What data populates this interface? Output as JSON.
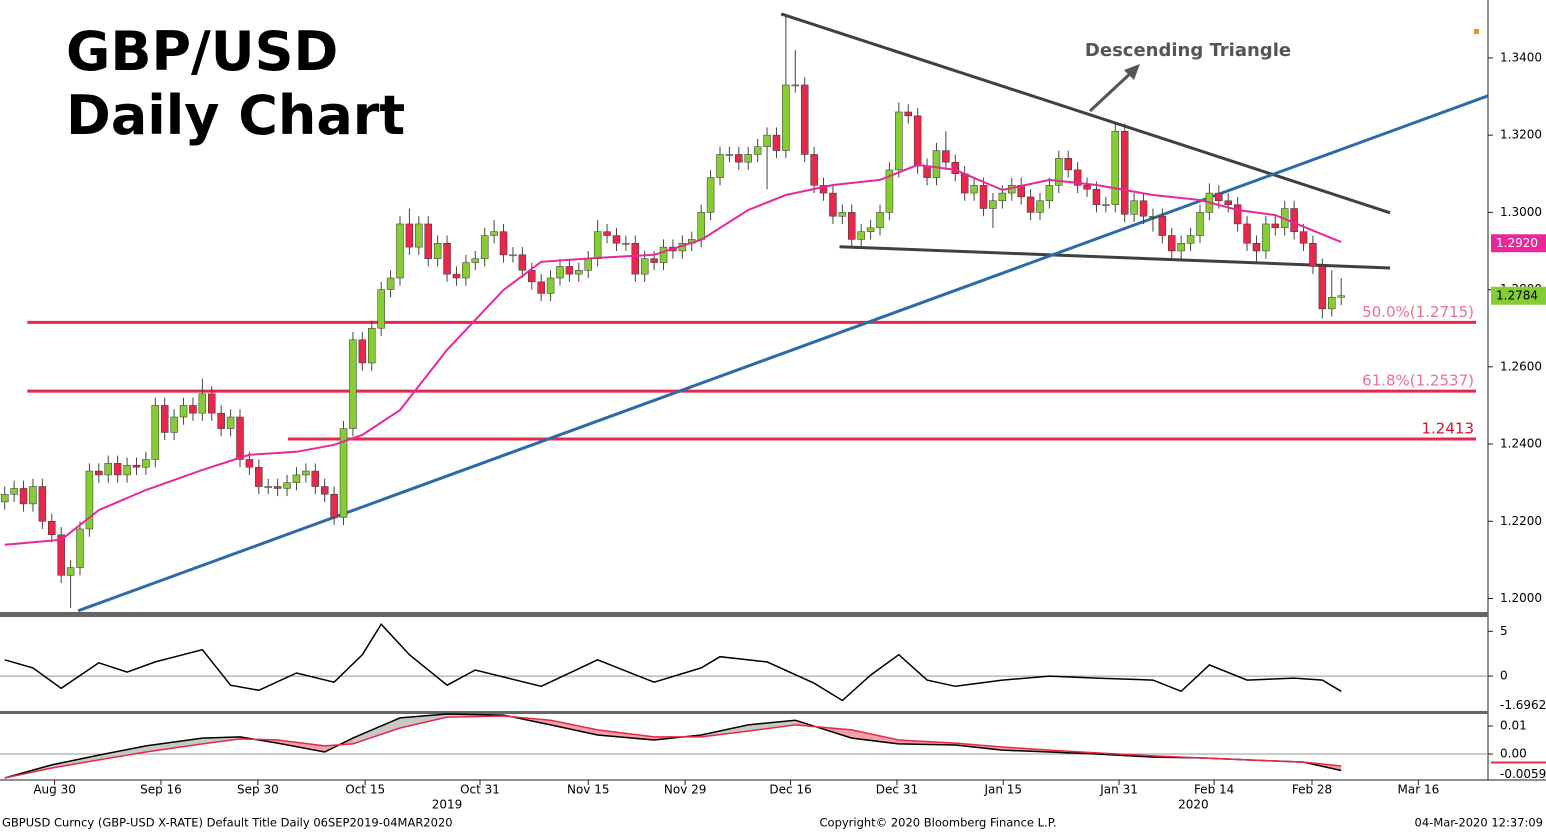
{
  "chart_data": {
    "type": "candlestick",
    "title": "GBP/USD",
    "subtitle": "Daily Chart",
    "annotation": "Descending Triangle",
    "xlim": [
      -0.5,
      157.6
    ],
    "ylim": [
      1.1965,
      1.355
    ],
    "yticks": [
      {
        "value": 1.2,
        "label": "1.2000"
      },
      {
        "value": 1.22,
        "label": "1.2200"
      },
      {
        "value": 1.24,
        "label": "1.2400"
      },
      {
        "value": 1.26,
        "label": "1.2600"
      },
      {
        "value": 1.28,
        "label": "1.2800"
      },
      {
        "value": 1.3,
        "label": "1.3000"
      },
      {
        "value": 1.32,
        "label": "1.3200"
      },
      {
        "value": 1.34,
        "label": "1.3400"
      }
    ],
    "xticks": [
      {
        "value": 5.3,
        "label": "Aug 30"
      },
      {
        "value": 16.6,
        "label": "Sep 16"
      },
      {
        "value": 26.9,
        "label": "Sep 30"
      },
      {
        "value": 38.3,
        "label": "Oct 15"
      },
      {
        "value": 50.5,
        "label": "Oct 31"
      },
      {
        "value": 62,
        "label": "Nov 15"
      },
      {
        "value": 72.3,
        "label": "Nov 29"
      },
      {
        "value": 83.5,
        "label": "Dec 16"
      },
      {
        "value": 94.8,
        "label": "Dec 31"
      },
      {
        "value": 106.1,
        "label": "Jan 15"
      },
      {
        "value": 118.4,
        "label": "Jan 31"
      },
      {
        "value": 128.5,
        "label": "Feb 14"
      },
      {
        "value": 138.9,
        "label": "Feb 28"
      },
      {
        "value": 150.2,
        "label": "Mar 16"
      }
    ],
    "year_labels": [
      {
        "value": 47,
        "label": "2019"
      },
      {
        "value": 126.3,
        "label": "2020"
      }
    ],
    "up_color": "#86cc34",
    "down_color": "#e8284a",
    "candles": [
      [
        1.225,
        1.229,
        1.223,
        1.227
      ],
      [
        1.227,
        1.2305,
        1.225,
        1.2285
      ],
      [
        1.2285,
        1.2305,
        1.2225,
        1.2245
      ],
      [
        1.2245,
        1.231,
        1.2225,
        1.229
      ],
      [
        1.229,
        1.231,
        1.218,
        1.22
      ],
      [
        1.22,
        1.222,
        1.2145,
        1.2165
      ],
      [
        1.2165,
        1.2185,
        1.204,
        1.206
      ],
      [
        1.206,
        1.21,
        1.1975,
        1.208
      ],
      [
        1.208,
        1.22,
        1.206,
        1.218
      ],
      [
        1.218,
        1.235,
        1.216,
        1.233
      ],
      [
        1.233,
        1.235,
        1.23,
        1.232
      ],
      [
        1.232,
        1.237,
        1.23,
        1.235
      ],
      [
        1.235,
        1.237,
        1.23,
        1.232
      ],
      [
        1.232,
        1.2365,
        1.23,
        1.2345
      ],
      [
        1.2345,
        1.2365,
        1.232,
        1.234
      ],
      [
        1.234,
        1.238,
        1.232,
        1.236
      ],
      [
        1.236,
        1.252,
        1.234,
        1.25
      ],
      [
        1.25,
        1.252,
        1.241,
        1.243
      ],
      [
        1.243,
        1.249,
        1.241,
        1.247
      ],
      [
        1.247,
        1.252,
        1.245,
        1.25
      ],
      [
        1.25,
        1.252,
        1.246,
        1.248
      ],
      [
        1.248,
        1.257,
        1.246,
        1.253
      ],
      [
        1.253,
        1.255,
        1.246,
        1.248
      ],
      [
        1.248,
        1.25,
        1.242,
        1.244
      ],
      [
        1.244,
        1.249,
        1.242,
        1.247
      ],
      [
        1.247,
        1.249,
        1.234,
        1.236
      ],
      [
        1.236,
        1.238,
        1.232,
        1.234
      ],
      [
        1.234,
        1.236,
        1.227,
        1.229
      ],
      [
        1.229,
        1.231,
        1.227,
        1.229
      ],
      [
        1.229,
        1.231,
        1.2265,
        1.2285
      ],
      [
        1.2285,
        1.232,
        1.2265,
        1.23
      ],
      [
        1.23,
        1.234,
        1.228,
        1.232
      ],
      [
        1.232,
        1.235,
        1.23,
        1.233
      ],
      [
        1.233,
        1.235,
        1.227,
        1.229
      ],
      [
        1.229,
        1.231,
        1.225,
        1.227
      ],
      [
        1.227,
        1.229,
        1.219,
        1.221
      ],
      [
        1.221,
        1.246,
        1.219,
        1.244
      ],
      [
        1.244,
        1.269,
        1.242,
        1.267
      ],
      [
        1.267,
        1.269,
        1.259,
        1.261
      ],
      [
        1.261,
        1.272,
        1.259,
        1.27
      ],
      [
        1.27,
        1.282,
        1.268,
        1.28
      ],
      [
        1.28,
        1.285,
        1.278,
        1.283
      ],
      [
        1.283,
        1.299,
        1.281,
        1.297
      ],
      [
        1.297,
        1.301,
        1.289,
        1.291
      ],
      [
        1.291,
        1.299,
        1.289,
        1.297
      ],
      [
        1.297,
        1.299,
        1.286,
        1.288
      ],
      [
        1.288,
        1.294,
        1.286,
        1.292
      ],
      [
        1.292,
        1.294,
        1.282,
        1.284
      ],
      [
        1.284,
        1.286,
        1.281,
        1.283
      ],
      [
        1.283,
        1.289,
        1.281,
        1.287
      ],
      [
        1.287,
        1.29,
        1.285,
        1.288
      ],
      [
        1.288,
        1.296,
        1.286,
        1.294
      ],
      [
        1.294,
        1.298,
        1.292,
        1.295
      ],
      [
        1.295,
        1.297,
        1.287,
        1.289
      ],
      [
        1.289,
        1.291,
        1.287,
        1.289
      ],
      [
        1.289,
        1.291,
        1.283,
        1.285
      ],
      [
        1.285,
        1.287,
        1.28,
        1.282
      ],
      [
        1.282,
        1.284,
        1.277,
        1.279
      ],
      [
        1.279,
        1.285,
        1.277,
        1.283
      ],
      [
        1.283,
        1.288,
        1.281,
        1.286
      ],
      [
        1.286,
        1.288,
        1.282,
        1.284
      ],
      [
        1.284,
        1.287,
        1.282,
        1.285
      ],
      [
        1.285,
        1.29,
        1.283,
        1.288
      ],
      [
        1.288,
        1.298,
        1.286,
        1.295
      ],
      [
        1.295,
        1.297,
        1.292,
        1.294
      ],
      [
        1.294,
        1.296,
        1.29,
        1.292
      ],
      [
        1.292,
        1.294,
        1.29,
        1.292
      ],
      [
        1.292,
        1.294,
        1.282,
        1.284
      ],
      [
        1.284,
        1.29,
        1.282,
        1.288
      ],
      [
        1.288,
        1.29,
        1.285,
        1.287
      ],
      [
        1.287,
        1.293,
        1.285,
        1.291
      ],
      [
        1.291,
        1.293,
        1.288,
        1.29
      ],
      [
        1.29,
        1.294,
        1.288,
        1.292
      ],
      [
        1.292,
        1.295,
        1.29,
        1.293
      ],
      [
        1.293,
        1.302,
        1.291,
        1.3
      ],
      [
        1.3,
        1.311,
        1.298,
        1.309
      ],
      [
        1.309,
        1.317,
        1.307,
        1.315
      ],
      [
        1.315,
        1.317,
        1.313,
        1.315
      ],
      [
        1.315,
        1.317,
        1.311,
        1.313
      ],
      [
        1.313,
        1.317,
        1.311,
        1.315
      ],
      [
        1.315,
        1.319,
        1.313,
        1.317
      ],
      [
        1.317,
        1.322,
        1.306,
        1.32
      ],
      [
        1.32,
        1.322,
        1.314,
        1.316
      ],
      [
        1.316,
        1.351,
        1.314,
        1.333
      ],
      [
        1.333,
        1.342,
        1.331,
        1.333
      ],
      [
        1.333,
        1.335,
        1.313,
        1.315
      ],
      [
        1.315,
        1.317,
        1.305,
        1.307
      ],
      [
        1.307,
        1.309,
        1.303,
        1.305
      ],
      [
        1.305,
        1.307,
        1.297,
        1.299
      ],
      [
        1.299,
        1.302,
        1.297,
        1.3
      ],
      [
        1.3,
        1.302,
        1.291,
        1.293
      ],
      [
        1.293,
        1.297,
        1.291,
        1.295
      ],
      [
        1.295,
        1.298,
        1.293,
        1.296
      ],
      [
        1.296,
        1.302,
        1.294,
        1.3
      ],
      [
        1.3,
        1.313,
        1.298,
        1.311
      ],
      [
        1.311,
        1.3285,
        1.309,
        1.326
      ],
      [
        1.326,
        1.328,
        1.323,
        1.325
      ],
      [
        1.325,
        1.327,
        1.31,
        1.312
      ],
      [
        1.312,
        1.314,
        1.307,
        1.309
      ],
      [
        1.309,
        1.318,
        1.307,
        1.316
      ],
      [
        1.316,
        1.321,
        1.311,
        1.313
      ],
      [
        1.313,
        1.315,
        1.308,
        1.31
      ],
      [
        1.31,
        1.312,
        1.303,
        1.305
      ],
      [
        1.305,
        1.309,
        1.303,
        1.307
      ],
      [
        1.307,
        1.309,
        1.299,
        1.301
      ],
      [
        1.301,
        1.305,
        1.296,
        1.303
      ],
      [
        1.303,
        1.307,
        1.301,
        1.305
      ],
      [
        1.305,
        1.309,
        1.303,
        1.307
      ],
      [
        1.307,
        1.309,
        1.302,
        1.304
      ],
      [
        1.304,
        1.306,
        1.298,
        1.3
      ],
      [
        1.3,
        1.305,
        1.298,
        1.303
      ],
      [
        1.303,
        1.309,
        1.301,
        1.307
      ],
      [
        1.307,
        1.316,
        1.305,
        1.314
      ],
      [
        1.314,
        1.316,
        1.309,
        1.311
      ],
      [
        1.311,
        1.313,
        1.305,
        1.307
      ],
      [
        1.307,
        1.309,
        1.304,
        1.306
      ],
      [
        1.306,
        1.308,
        1.3,
        1.302
      ],
      [
        1.302,
        1.304,
        1.3,
        1.302
      ],
      [
        1.302,
        1.323,
        1.3,
        1.321
      ],
      [
        1.321,
        1.323,
        1.2975,
        1.2995
      ],
      [
        1.2995,
        1.305,
        1.2975,
        1.303
      ],
      [
        1.303,
        1.305,
        1.297,
        1.299
      ],
      [
        1.299,
        1.301,
        1.295,
        1.299
      ],
      [
        1.299,
        1.301,
        1.292,
        1.294
      ],
      [
        1.294,
        1.296,
        1.288,
        1.29
      ],
      [
        1.29,
        1.294,
        1.288,
        1.292
      ],
      [
        1.292,
        1.296,
        1.29,
        1.294
      ],
      [
        1.294,
        1.302,
        1.292,
        1.3
      ],
      [
        1.3,
        1.3075,
        1.298,
        1.305
      ],
      [
        1.305,
        1.307,
        1.301,
        1.303
      ],
      [
        1.303,
        1.305,
        1.3,
        1.302
      ],
      [
        1.302,
        1.304,
        1.295,
        1.297
      ],
      [
        1.297,
        1.299,
        1.29,
        1.292
      ],
      [
        1.292,
        1.294,
        1.287,
        1.29
      ],
      [
        1.29,
        1.299,
        1.288,
        1.297
      ],
      [
        1.297,
        1.299,
        1.294,
        1.296
      ],
      [
        1.296,
        1.303,
        1.294,
        1.301
      ],
      [
        1.301,
        1.303,
        1.293,
        1.295
      ],
      [
        1.295,
        1.297,
        1.29,
        1.292
      ],
      [
        1.292,
        1.294,
        1.284,
        1.286
      ],
      [
        1.286,
        1.288,
        1.2725,
        1.275
      ],
      [
        1.275,
        1.285,
        1.273,
        1.278
      ],
      [
        1.278,
        1.283,
        1.276,
        1.2784
      ]
    ],
    "ma": {
      "color": "#e8289a",
      "x": [
        0,
        6,
        10,
        15,
        21,
        26,
        31,
        35,
        38,
        42,
        47,
        53,
        57,
        63,
        69,
        74,
        79,
        83,
        88,
        93,
        97,
        101,
        106,
        111,
        116,
        122,
        127,
        131,
        135,
        142
      ],
      "values": [
        1.2139,
        1.2152,
        1.2229,
        1.2281,
        1.2333,
        1.2372,
        1.238,
        1.2398,
        1.2424,
        1.2488,
        1.2644,
        1.2799,
        1.2872,
        1.2882,
        1.289,
        1.2929,
        1.3006,
        1.3045,
        1.3071,
        1.3084,
        1.3123,
        1.311,
        1.3058,
        1.3084,
        1.3071,
        1.3045,
        1.3032,
        1.3006,
        1.2993,
        1.2923
      ]
    },
    "trend_lines": [
      {
        "color": "#404040",
        "x": [
          82.5,
          147.2
        ],
        "values": [
          1.3514,
          1.2999
        ]
      },
      {
        "color": "#404040",
        "x": [
          88.7,
          147.2
        ],
        "values": [
          1.2911,
          1.2856
        ]
      },
      {
        "color": "#2f6aa8",
        "x": [
          7.8,
          157.6
        ],
        "values": [
          1.1968,
          1.3302
        ]
      }
    ],
    "levels": [
      {
        "value": 1.2715,
        "label": "50.0%(1.2715)",
        "color": "#e8284a",
        "label_color": "#f07090",
        "from": 2.4
      },
      {
        "value": 1.2537,
        "label": "61.8%(1.2537)",
        "color": "#e8284a",
        "label_color": "#f07090",
        "from": 2.4
      },
      {
        "value": 1.2413,
        "label": "1.2413",
        "color": "#e8284a",
        "label_color": "#e0102a",
        "from": 30.1
      }
    ],
    "last_prices": [
      {
        "value": 1.292,
        "label": "1.2920",
        "color": "#e8289a",
        "text_color": "#ffffff"
      },
      {
        "value": 1.2784,
        "label": "1.2784",
        "color": "#86cc34",
        "text_color": "#000000"
      }
    ],
    "panels": [
      {
        "ylim": [
          -3.9,
          6.6
        ],
        "yticks": [
          5,
          0
        ],
        "last": {
          "value": -1.6962,
          "label": "-1.6962"
        },
        "series": [
          {
            "color": "#000000",
            "x": [
              0,
              3,
              6,
              10,
              13,
              16,
              21,
              24,
              27,
              31,
              35,
              38,
              40,
              43,
              47,
              50,
              57,
              63,
              69,
              74,
              76,
              81,
              86,
              89,
              92,
              95,
              98,
              101,
              106,
              111,
              116,
              122,
              125,
              128,
              132,
              137,
              140,
              142
            ],
            "values": [
              1.82,
              0.91,
              -1.36,
              1.48,
              0.45,
              1.59,
              2.95,
              -1.02,
              -1.59,
              0.34,
              -0.68,
              2.39,
              5.8,
              2.39,
              -1.02,
              0.68,
              -1.14,
              1.82,
              -0.68,
              0.91,
              2.16,
              1.59,
              -0.8,
              -2.73,
              0.11,
              2.39,
              -0.45,
              -1.14,
              -0.45,
              0,
              -0.23,
              -0.45,
              -1.7,
              1.25,
              -0.45,
              -0.23,
              -0.45,
              -1.6962
            ]
          }
        ]
      },
      {
        "ylim": [
          -0.0093,
          0.0143
        ],
        "yticks": [
          0.01,
          {
            "value": 0,
            "label": "0.00"
          }
        ],
        "last": {
          "value": -0.0059,
          "label": "-0.0059"
        },
        "fill_up": "#c8c8c8",
        "fill_down": "#f4a0a8",
        "x": [
          0,
          5,
          10,
          15,
          21,
          25,
          29,
          34,
          37,
          42,
          47,
          53,
          58,
          63,
          69,
          74,
          79,
          84,
          90,
          95,
          101,
          106,
          111,
          116,
          122,
          127,
          132,
          138,
          142
        ],
        "series": [
          {
            "color": "#000000",
            "values": [
              -0.0086,
              -0.0039,
              -0.0004,
              0.0029,
              0.0057,
              0.0061,
              0.0039,
              0.0007,
              0.0057,
              0.0129,
              0.0143,
              0.0139,
              0.0104,
              0.0068,
              0.005,
              0.0068,
              0.0104,
              0.0121,
              0.0057,
              0.0036,
              0.0032,
              0.0014,
              0.0007,
              0,
              -0.0011,
              -0.0014,
              -0.0021,
              -0.0029,
              -0.0059
            ]
          },
          {
            "color": "#e8284a",
            "values": [
              -0.0086,
              -0.005,
              -0.0021,
              0.0007,
              0.0036,
              0.0054,
              0.005,
              0.0029,
              0.0036,
              0.0093,
              0.0132,
              0.0136,
              0.0121,
              0.0086,
              0.0061,
              0.0061,
              0.0082,
              0.0104,
              0.0086,
              0.005,
              0.0039,
              0.0025,
              0.0014,
              0.0004,
              -0.0007,
              -0.0014,
              -0.0021,
              -0.0029,
              -0.0043
            ]
          }
        ]
      }
    ],
    "footer": {
      "left": "GBPUSD Curncy (GBP-USD X-RATE) Default Title  Daily 06SEP2019-04MAR2020",
      "center": "Copyright© 2020 Bloomberg Finance L.P.",
      "right": "04-Mar-2020 12:37:09"
    }
  }
}
